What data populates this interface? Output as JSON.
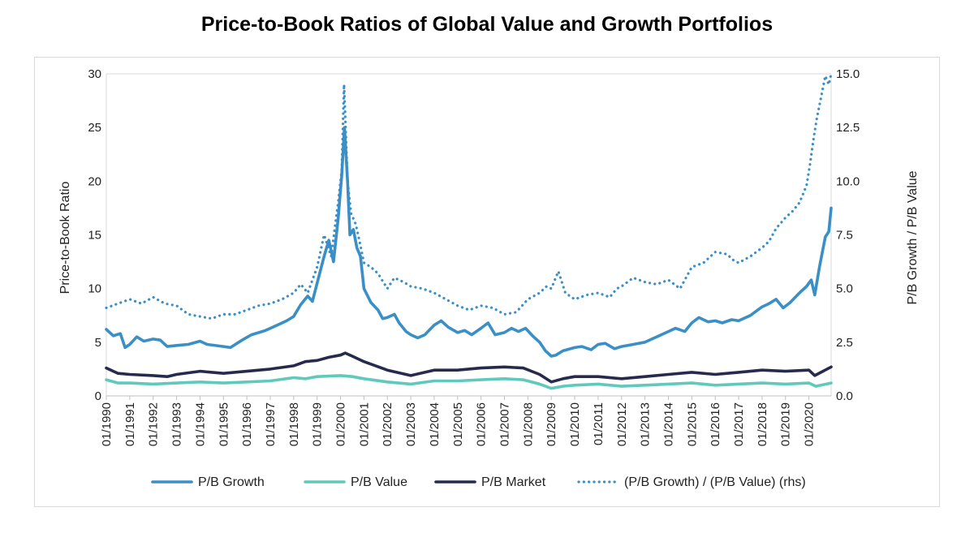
{
  "chart_data": {
    "type": "line",
    "title": "Price-to-Book Ratios of Global Value and Growth Portfolios",
    "ylabel": "Price-to-Book Ratio",
    "y2label": "P/B Growth / P/B Value",
    "ylim": [
      0,
      30
    ],
    "y2lim": [
      0,
      15
    ],
    "yticks": [
      "0",
      "5",
      "10",
      "15",
      "20",
      "25",
      "30"
    ],
    "y2ticks": [
      "0.0",
      "2.5",
      "5.0",
      "7.5",
      "10.0",
      "12.5",
      "15.0"
    ],
    "xlim": [
      1990.0,
      2020.95
    ],
    "xticks": [
      "01/1990",
      "01/1991",
      "01/1992",
      "01/1993",
      "01/1994",
      "01/1995",
      "01/1996",
      "01/1997",
      "01/1998",
      "01/1999",
      "01/2000",
      "01/2001",
      "01/2002",
      "01/2003",
      "01/2004",
      "01/2005",
      "01/2006",
      "01/2007",
      "01/2008",
      "01/2009",
      "01/2010",
      "01/2011",
      "01/2012",
      "01/2013",
      "01/2014",
      "01/2015",
      "01/2016",
      "01/2017",
      "01/2018",
      "01/2019",
      "01/2020"
    ],
    "grid": "horizontal-frame",
    "legend_position": "bottom",
    "series": [
      {
        "name": "P/B Growth",
        "axis": "left",
        "color": "#3a8fc7",
        "style": "solid",
        "points": [
          [
            1990.0,
            6.2
          ],
          [
            1990.3,
            5.6
          ],
          [
            1990.6,
            5.8
          ],
          [
            1990.8,
            4.5
          ],
          [
            1991.0,
            4.8
          ],
          [
            1991.3,
            5.5
          ],
          [
            1991.6,
            5.1
          ],
          [
            1992.0,
            5.3
          ],
          [
            1992.3,
            5.2
          ],
          [
            1992.6,
            4.6
          ],
          [
            1993.0,
            4.7
          ],
          [
            1993.5,
            4.8
          ],
          [
            1994.0,
            5.1
          ],
          [
            1994.3,
            4.8
          ],
          [
            1995.0,
            4.6
          ],
          [
            1995.3,
            4.5
          ],
          [
            1995.8,
            5.2
          ],
          [
            1996.2,
            5.7
          ],
          [
            1996.8,
            6.1
          ],
          [
            1997.3,
            6.6
          ],
          [
            1997.7,
            7.0
          ],
          [
            1998.0,
            7.4
          ],
          [
            1998.3,
            8.5
          ],
          [
            1998.6,
            9.3
          ],
          [
            1998.8,
            8.8
          ],
          [
            1999.0,
            10.5
          ],
          [
            1999.3,
            13.0
          ],
          [
            1999.5,
            14.5
          ],
          [
            1999.7,
            12.5
          ],
          [
            1999.9,
            16.5
          ],
          [
            2000.05,
            20.5
          ],
          [
            2000.17,
            25.0
          ],
          [
            2000.3,
            20.0
          ],
          [
            2000.4,
            15.0
          ],
          [
            2000.55,
            15.5
          ],
          [
            2000.7,
            13.8
          ],
          [
            2000.85,
            13.0
          ],
          [
            2001.0,
            10.0
          ],
          [
            2001.3,
            8.7
          ],
          [
            2001.6,
            8.0
          ],
          [
            2001.8,
            7.2
          ],
          [
            2002.0,
            7.3
          ],
          [
            2002.3,
            7.6
          ],
          [
            2002.5,
            6.8
          ],
          [
            2002.8,
            6.0
          ],
          [
            2003.0,
            5.7
          ],
          [
            2003.3,
            5.4
          ],
          [
            2003.6,
            5.7
          ],
          [
            2004.0,
            6.6
          ],
          [
            2004.3,
            7.0
          ],
          [
            2004.6,
            6.4
          ],
          [
            2005.0,
            5.9
          ],
          [
            2005.3,
            6.1
          ],
          [
            2005.6,
            5.7
          ],
          [
            2006.0,
            6.3
          ],
          [
            2006.3,
            6.8
          ],
          [
            2006.6,
            5.7
          ],
          [
            2007.0,
            5.9
          ],
          [
            2007.3,
            6.3
          ],
          [
            2007.6,
            6.0
          ],
          [
            2007.9,
            6.3
          ],
          [
            2008.2,
            5.6
          ],
          [
            2008.5,
            5.0
          ],
          [
            2008.75,
            4.2
          ],
          [
            2009.0,
            3.7
          ],
          [
            2009.2,
            3.8
          ],
          [
            2009.5,
            4.2
          ],
          [
            2010.0,
            4.5
          ],
          [
            2010.3,
            4.6
          ],
          [
            2010.7,
            4.3
          ],
          [
            2011.0,
            4.8
          ],
          [
            2011.3,
            4.9
          ],
          [
            2011.7,
            4.4
          ],
          [
            2012.0,
            4.6
          ],
          [
            2012.5,
            4.8
          ],
          [
            2013.0,
            5.0
          ],
          [
            2013.5,
            5.5
          ],
          [
            2014.0,
            6.0
          ],
          [
            2014.3,
            6.3
          ],
          [
            2014.7,
            6.0
          ],
          [
            2015.0,
            6.8
          ],
          [
            2015.3,
            7.3
          ],
          [
            2015.7,
            6.9
          ],
          [
            2016.0,
            7.0
          ],
          [
            2016.3,
            6.8
          ],
          [
            2016.7,
            7.1
          ],
          [
            2017.0,
            7.0
          ],
          [
            2017.5,
            7.5
          ],
          [
            2018.0,
            8.3
          ],
          [
            2018.3,
            8.6
          ],
          [
            2018.6,
            9.0
          ],
          [
            2018.9,
            8.2
          ],
          [
            2019.2,
            8.7
          ],
          [
            2019.6,
            9.6
          ],
          [
            2019.9,
            10.2
          ],
          [
            2020.1,
            10.8
          ],
          [
            2020.25,
            9.4
          ],
          [
            2020.45,
            12.0
          ],
          [
            2020.7,
            14.8
          ],
          [
            2020.85,
            15.3
          ],
          [
            2020.95,
            17.5
          ]
        ]
      },
      {
        "name": "P/B Value",
        "axis": "left",
        "color": "#5fcabb",
        "style": "solid",
        "points": [
          [
            1990.0,
            1.5
          ],
          [
            1990.5,
            1.2
          ],
          [
            1991.0,
            1.2
          ],
          [
            1992.0,
            1.1
          ],
          [
            1993.0,
            1.2
          ],
          [
            1994.0,
            1.3
          ],
          [
            1995.0,
            1.2
          ],
          [
            1996.0,
            1.3
          ],
          [
            1997.0,
            1.4
          ],
          [
            1998.0,
            1.7
          ],
          [
            1998.5,
            1.6
          ],
          [
            1999.0,
            1.8
          ],
          [
            2000.0,
            1.9
          ],
          [
            2000.5,
            1.8
          ],
          [
            2001.0,
            1.6
          ],
          [
            2002.0,
            1.3
          ],
          [
            2003.0,
            1.1
          ],
          [
            2004.0,
            1.4
          ],
          [
            2005.0,
            1.4
          ],
          [
            2006.0,
            1.5
          ],
          [
            2007.0,
            1.6
          ],
          [
            2007.8,
            1.5
          ],
          [
            2008.5,
            1.1
          ],
          [
            2009.0,
            0.7
          ],
          [
            2009.5,
            0.9
          ],
          [
            2010.0,
            1.0
          ],
          [
            2011.0,
            1.1
          ],
          [
            2012.0,
            0.9
          ],
          [
            2013.0,
            1.0
          ],
          [
            2014.0,
            1.1
          ],
          [
            2015.0,
            1.2
          ],
          [
            2016.0,
            1.0
          ],
          [
            2017.0,
            1.1
          ],
          [
            2018.0,
            1.2
          ],
          [
            2019.0,
            1.1
          ],
          [
            2020.0,
            1.2
          ],
          [
            2020.3,
            0.9
          ],
          [
            2020.95,
            1.2
          ]
        ]
      },
      {
        "name": "P/B Market",
        "axis": "left",
        "color": "#272a4c",
        "style": "solid",
        "points": [
          [
            1990.0,
            2.6
          ],
          [
            1990.5,
            2.1
          ],
          [
            1991.0,
            2.0
          ],
          [
            1992.0,
            1.9
          ],
          [
            1992.6,
            1.8
          ],
          [
            1993.0,
            2.0
          ],
          [
            1994.0,
            2.3
          ],
          [
            1995.0,
            2.1
          ],
          [
            1996.0,
            2.3
          ],
          [
            1997.0,
            2.5
          ],
          [
            1998.0,
            2.8
          ],
          [
            1998.5,
            3.2
          ],
          [
            1999.0,
            3.3
          ],
          [
            1999.5,
            3.6
          ],
          [
            2000.0,
            3.8
          ],
          [
            2000.2,
            4.0
          ],
          [
            2000.5,
            3.7
          ],
          [
            2001.0,
            3.2
          ],
          [
            2002.0,
            2.4
          ],
          [
            2003.0,
            1.9
          ],
          [
            2004.0,
            2.4
          ],
          [
            2005.0,
            2.4
          ],
          [
            2006.0,
            2.6
          ],
          [
            2007.0,
            2.7
          ],
          [
            2007.8,
            2.6
          ],
          [
            2008.5,
            2.0
          ],
          [
            2009.0,
            1.3
          ],
          [
            2009.5,
            1.6
          ],
          [
            2010.0,
            1.8
          ],
          [
            2011.0,
            1.8
          ],
          [
            2012.0,
            1.6
          ],
          [
            2013.0,
            1.8
          ],
          [
            2014.0,
            2.0
          ],
          [
            2015.0,
            2.2
          ],
          [
            2016.0,
            2.0
          ],
          [
            2017.0,
            2.2
          ],
          [
            2018.0,
            2.4
          ],
          [
            2019.0,
            2.3
          ],
          [
            2020.0,
            2.4
          ],
          [
            2020.25,
            1.9
          ],
          [
            2020.6,
            2.3
          ],
          [
            2020.95,
            2.7
          ]
        ]
      },
      {
        "name": "(P/B Growth) / (P/B Value) (rhs)",
        "axis": "right",
        "color": "#3a8fc7",
        "style": "dotted",
        "points": [
          [
            1990.0,
            4.1
          ],
          [
            1990.5,
            4.3
          ],
          [
            1991.0,
            4.5
          ],
          [
            1991.5,
            4.3
          ],
          [
            1992.0,
            4.6
          ],
          [
            1992.5,
            4.3
          ],
          [
            1993.0,
            4.2
          ],
          [
            1993.5,
            3.8
          ],
          [
            1994.0,
            3.7
          ],
          [
            1994.5,
            3.6
          ],
          [
            1995.0,
            3.8
          ],
          [
            1995.5,
            3.8
          ],
          [
            1996.0,
            4.0
          ],
          [
            1996.5,
            4.2
          ],
          [
            1997.0,
            4.3
          ],
          [
            1997.5,
            4.5
          ],
          [
            1998.0,
            4.8
          ],
          [
            1998.3,
            5.2
          ],
          [
            1998.6,
            4.8
          ],
          [
            1999.0,
            6.0
          ],
          [
            1999.3,
            7.5
          ],
          [
            1999.6,
            6.5
          ],
          [
            1999.9,
            9.0
          ],
          [
            2000.05,
            10.5
          ],
          [
            2000.15,
            14.5
          ],
          [
            2000.3,
            10.0
          ],
          [
            2000.45,
            8.5
          ],
          [
            2000.65,
            8.0
          ],
          [
            2000.85,
            7.0
          ],
          [
            2001.0,
            6.2
          ],
          [
            2001.3,
            6.0
          ],
          [
            2001.6,
            5.7
          ],
          [
            2002.0,
            5.0
          ],
          [
            2002.3,
            5.5
          ],
          [
            2002.7,
            5.3
          ],
          [
            2003.0,
            5.1
          ],
          [
            2003.5,
            5.0
          ],
          [
            2004.0,
            4.8
          ],
          [
            2004.5,
            4.5
          ],
          [
            2005.0,
            4.2
          ],
          [
            2005.5,
            4.0
          ],
          [
            2006.0,
            4.2
          ],
          [
            2006.5,
            4.1
          ],
          [
            2007.0,
            3.8
          ],
          [
            2007.5,
            3.9
          ],
          [
            2008.0,
            4.5
          ],
          [
            2008.5,
            4.8
          ],
          [
            2008.8,
            5.1
          ],
          [
            2009.0,
            5.0
          ],
          [
            2009.3,
            5.8
          ],
          [
            2009.6,
            4.8
          ],
          [
            2010.0,
            4.5
          ],
          [
            2010.5,
            4.7
          ],
          [
            2011.0,
            4.8
          ],
          [
            2011.5,
            4.6
          ],
          [
            2011.8,
            5.0
          ],
          [
            2012.0,
            5.1
          ],
          [
            2012.5,
            5.5
          ],
          [
            2013.0,
            5.3
          ],
          [
            2013.5,
            5.2
          ],
          [
            2014.0,
            5.4
          ],
          [
            2014.5,
            5.0
          ],
          [
            2015.0,
            6.0
          ],
          [
            2015.5,
            6.2
          ],
          [
            2016.0,
            6.7
          ],
          [
            2016.5,
            6.6
          ],
          [
            2016.8,
            6.3
          ],
          [
            2017.0,
            6.2
          ],
          [
            2017.5,
            6.5
          ],
          [
            2018.0,
            6.9
          ],
          [
            2018.3,
            7.2
          ],
          [
            2018.6,
            7.8
          ],
          [
            2019.0,
            8.3
          ],
          [
            2019.3,
            8.6
          ],
          [
            2019.6,
            9.0
          ],
          [
            2019.9,
            9.8
          ],
          [
            2020.05,
            10.8
          ],
          [
            2020.2,
            12.0
          ],
          [
            2020.35,
            13.0
          ],
          [
            2020.5,
            13.8
          ],
          [
            2020.7,
            14.9
          ],
          [
            2020.85,
            14.5
          ],
          [
            2020.95,
            15.0
          ]
        ]
      }
    ]
  }
}
